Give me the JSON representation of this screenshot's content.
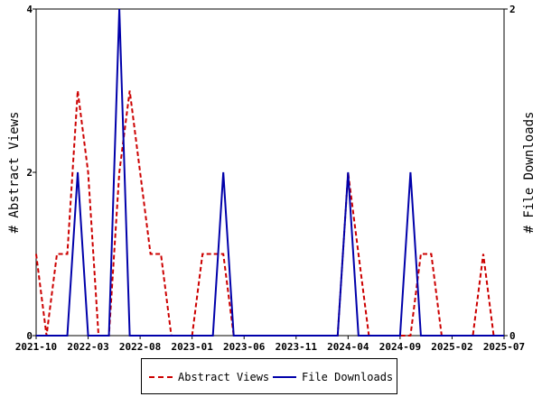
{
  "chart_data": {
    "type": "line",
    "x": [
      "2021-10",
      "2021-11",
      "2021-12",
      "2022-01",
      "2022-02",
      "2022-03",
      "2022-04",
      "2022-05",
      "2022-06",
      "2022-07",
      "2022-08",
      "2022-09",
      "2022-10",
      "2022-11",
      "2022-12",
      "2023-01",
      "2023-02",
      "2023-03",
      "2023-04",
      "2023-05",
      "2023-06",
      "2023-07",
      "2023-08",
      "2023-09",
      "2023-10",
      "2023-11",
      "2023-12",
      "2024-01",
      "2024-02",
      "2024-03",
      "2024-04",
      "2024-05",
      "2024-06",
      "2024-07",
      "2024-08",
      "2024-09",
      "2024-10",
      "2024-11",
      "2024-12",
      "2025-01",
      "2025-02",
      "2025-03",
      "2025-04",
      "2025-05",
      "2025-06",
      "2025-07"
    ],
    "series": [
      {
        "name": "Abstract Views",
        "axis": "left",
        "color": "#cc0000",
        "style": "dashed",
        "values": [
          1,
          0,
          1,
          1,
          3,
          2,
          0,
          0,
          2,
          3,
          2,
          1,
          1,
          0,
          0,
          0,
          1,
          1,
          1,
          0,
          0,
          0,
          0,
          0,
          0,
          0,
          0,
          0,
          0,
          0,
          2,
          1,
          0,
          0,
          0,
          0,
          0,
          1,
          1,
          0,
          0,
          0,
          0,
          1,
          0,
          0
        ]
      },
      {
        "name": "File Downloads",
        "axis": "right",
        "color": "#0000aa",
        "style": "solid",
        "values": [
          0,
          0,
          0,
          0,
          1,
          0,
          0,
          0,
          2,
          0,
          0,
          0,
          0,
          0,
          0,
          0,
          0,
          0,
          1,
          0,
          0,
          0,
          0,
          0,
          0,
          0,
          0,
          0,
          0,
          0,
          1,
          0,
          0,
          0,
          0,
          0,
          1,
          0,
          0,
          0,
          0,
          0,
          0,
          0,
          0,
          0
        ]
      }
    ],
    "x_tick_labels": [
      "2021-10",
      "2022-03",
      "2022-08",
      "2023-01",
      "2023-06",
      "2023-11",
      "2024-04",
      "2024-09",
      "2025-02",
      "2025-07"
    ],
    "y_left": {
      "label": "# Abstract Views",
      "ticks": [
        "0",
        "2",
        "4"
      ],
      "range": [
        0,
        4
      ]
    },
    "y_right": {
      "label": "# File Downloads",
      "ticks": [
        "0",
        "2"
      ],
      "range": [
        0,
        2
      ]
    },
    "grid": false,
    "legend_position": "bottom-center"
  },
  "legend": [
    {
      "label": "Abstract Views"
    },
    {
      "label": "File Downloads"
    }
  ]
}
